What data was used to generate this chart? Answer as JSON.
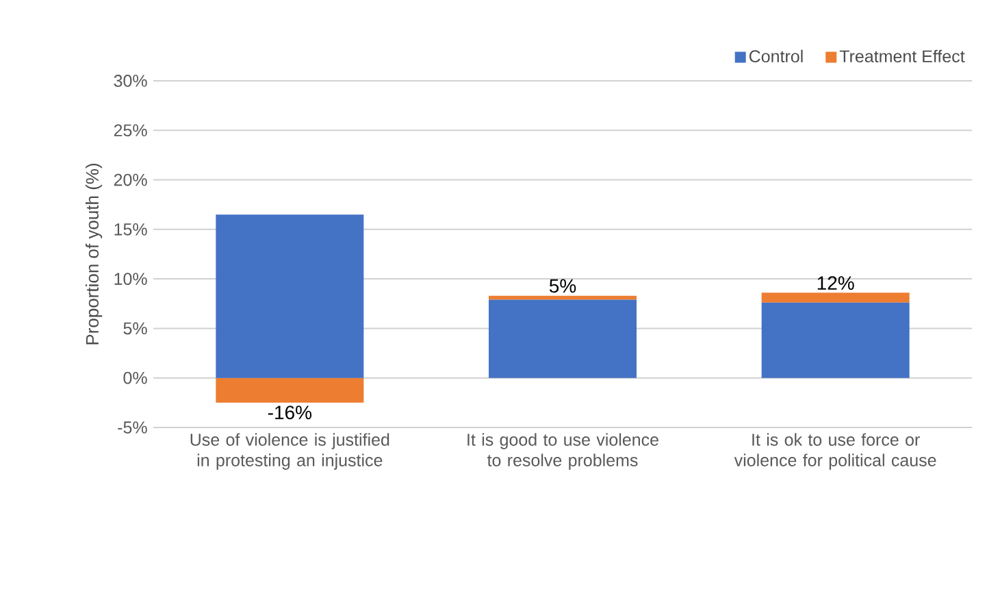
{
  "chart_data": {
    "type": "bar",
    "stacked": true,
    "ylabel": "Proportion of youth (%)",
    "categories": [
      "Use of violence is justified in protesting an injustice",
      "It is good to use violence to resolve problems",
      "It is ok to use force or violence for political cause"
    ],
    "series": [
      {
        "name": "Control",
        "color": "#4472c4",
        "values": [
          16.5,
          7.9,
          7.6
        ]
      },
      {
        "name": "Treatment Effect",
        "color": "#ed7d31",
        "values": [
          -2.5,
          0.4,
          1.0
        ]
      }
    ],
    "annotations": [
      {
        "text": "-16%",
        "x": "Use of violence is justified in protesting an injustice",
        "y": -2.5
      },
      {
        "text": "5%",
        "x": "It is good to use violence to resolve problems",
        "y": 8.3
      },
      {
        "text": "12%",
        "x": "It is ok to use force or violence for political cause",
        "y": 8.6
      }
    ],
    "ylim": [
      -5,
      30
    ],
    "yticks": [
      {
        "value": -5,
        "label": "-5%"
      },
      {
        "value": 0,
        "label": "0%"
      },
      {
        "value": 5,
        "label": "5%"
      },
      {
        "value": 10,
        "label": "10%"
      },
      {
        "value": 15,
        "label": "15%"
      },
      {
        "value": 20,
        "label": "20%"
      },
      {
        "value": 25,
        "label": "25%"
      },
      {
        "value": 30,
        "label": "30%"
      }
    ],
    "grid": "y",
    "legend": "top right"
  }
}
